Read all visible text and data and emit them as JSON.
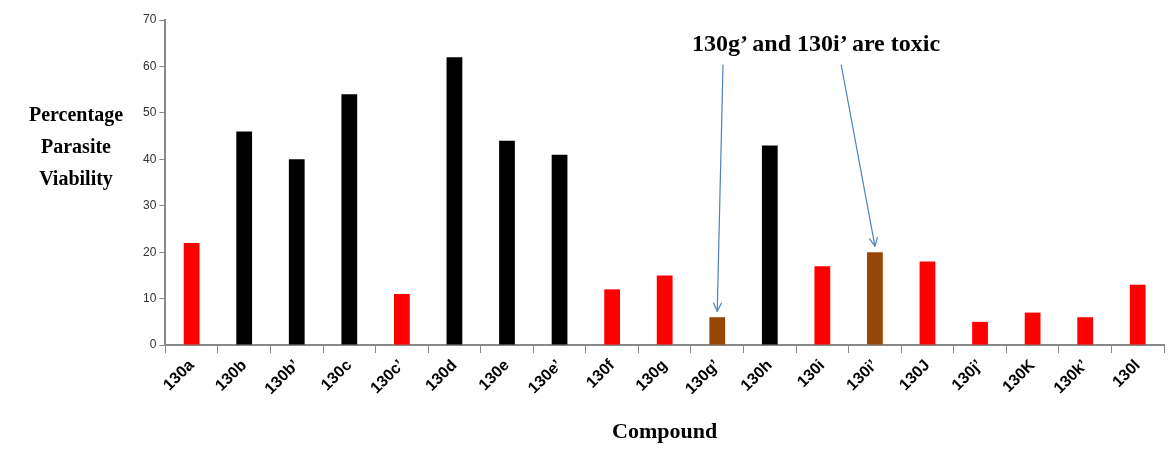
{
  "chart_data": {
    "type": "bar",
    "xlabel": "Compound",
    "ylabel": "Percentage Parasite Viability",
    "categories": [
      "130a",
      "130b",
      "130b’",
      "130c",
      "130c’",
      "130d",
      "130e",
      "130e’",
      "130f",
      "130g",
      "130g’",
      "130h",
      "130i",
      "130i’",
      "130J",
      "130j’",
      "130K",
      "130k’",
      "130l"
    ],
    "values": [
      22,
      46,
      40,
      54,
      11,
      62,
      44,
      41,
      12,
      15,
      6,
      43,
      17,
      20,
      18,
      5,
      7,
      6,
      13
    ],
    "colors": [
      "#ff0000",
      "#000000",
      "#000000",
      "#000000",
      "#ff0000",
      "#000000",
      "#000000",
      "#000000",
      "#ff0000",
      "#ff0000",
      "#974706",
      "#000000",
      "#ff0000",
      "#974706",
      "#ff0000",
      "#ff0000",
      "#ff0000",
      "#ff0000",
      "#ff0000"
    ],
    "ylim": [
      0,
      70
    ],
    "yticks": [
      0,
      10,
      20,
      30,
      40,
      50,
      60,
      70
    ],
    "grid": false,
    "legend": false,
    "annotations": [
      "130g’ and 130i’ are toxic"
    ]
  }
}
